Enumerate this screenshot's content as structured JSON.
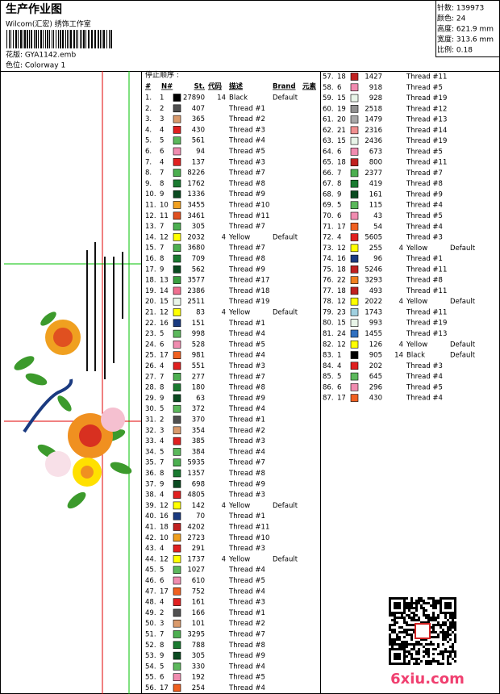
{
  "header": {
    "title": "生产作业图",
    "studio": "Wilcom(汇宏) 绣饰工作室",
    "design": "花版: GYA1142.emb",
    "colorway": "色位: Colorway 1"
  },
  "stats": [
    "针数: 139973",
    "颜色: 24",
    "高度: 621.9 mm",
    "宽度: 313.6 mm",
    "比例: 0.18"
  ],
  "table": {
    "caption": "停止顺序 :",
    "columns": [
      "#",
      "N#",
      "St.",
      "代码",
      "描述",
      "Brand",
      "元素"
    ],
    "rows": [
      {
        "no": "1.",
        "needle": 1,
        "stitches": 27890,
        "code": 14,
        "desc": "Black",
        "brand": "Default",
        "color": "#000000"
      },
      {
        "no": "2.",
        "needle": 2,
        "stitches": 407,
        "desc": "Thread #1",
        "color": "#505050"
      },
      {
        "no": "3.",
        "needle": 3,
        "stitches": 365,
        "desc": "Thread #2",
        "color": "#d99a6c"
      },
      {
        "no": "4.",
        "needle": 4,
        "stitches": 430,
        "desc": "Thread #3",
        "color": "#e02020"
      },
      {
        "no": "5.",
        "needle": 5,
        "stitches": 561,
        "desc": "Thread #4",
        "color": "#5cb85c"
      },
      {
        "no": "6.",
        "needle": 6,
        "stitches": 94,
        "desc": "Thread #5",
        "color": "#f08cb0"
      },
      {
        "no": "7.",
        "needle": 4,
        "stitches": 137,
        "desc": "Thread #3",
        "color": "#e02020"
      },
      {
        "no": "8.",
        "needle": 7,
        "stitches": 8226,
        "desc": "Thread #7",
        "color": "#4caf50"
      },
      {
        "no": "9.",
        "needle": 8,
        "stitches": 1762,
        "desc": "Thread #8",
        "color": "#1a7a30"
      },
      {
        "no": "10.",
        "needle": 9,
        "stitches": 1336,
        "desc": "Thread #9",
        "color": "#0a4a20"
      },
      {
        "no": "11.",
        "needle": 10,
        "stitches": 3455,
        "desc": "Thread #10",
        "color": "#f0a020"
      },
      {
        "no": "12.",
        "needle": 11,
        "stitches": 3461,
        "desc": "Thread #11",
        "color": "#e05020"
      },
      {
        "no": "13.",
        "needle": 7,
        "stitches": 305,
        "desc": "Thread #7",
        "color": "#4caf50"
      },
      {
        "no": "14.",
        "needle": 12,
        "stitches": 2032,
        "code": 4,
        "desc": "Yellow",
        "brand": "Default",
        "color": "#ffff00"
      },
      {
        "no": "15.",
        "needle": 7,
        "stitches": 3680,
        "desc": "Thread #7",
        "color": "#4caf50"
      },
      {
        "no": "16.",
        "needle": 8,
        "stitches": 709,
        "desc": "Thread #8",
        "color": "#1a7a30"
      },
      {
        "no": "17.",
        "needle": 9,
        "stitches": 562,
        "desc": "Thread #9",
        "color": "#0a4a20"
      },
      {
        "no": "18.",
        "needle": 13,
        "stitches": 3577,
        "desc": "Thread #17",
        "color": "#3aa040"
      },
      {
        "no": "19.",
        "needle": 14,
        "stitches": 2386,
        "desc": "Thread #18",
        "color": "#f07090"
      },
      {
        "no": "20.",
        "needle": 15,
        "stitches": 2511,
        "desc": "Thread #19",
        "color": "#e8f4e8"
      },
      {
        "no": "21.",
        "needle": 12,
        "stitches": 83,
        "code": 4,
        "desc": "Yellow",
        "brand": "Default",
        "color": "#ffff00"
      },
      {
        "no": "22.",
        "needle": 16,
        "stitches": 151,
        "desc": "Thread #1",
        "color": "#1a3a80"
      },
      {
        "no": "23.",
        "needle": 5,
        "stitches": 998,
        "desc": "Thread #4",
        "color": "#5cb85c"
      },
      {
        "no": "24.",
        "needle": 6,
        "stitches": 528,
        "desc": "Thread #5",
        "color": "#f08cb0"
      },
      {
        "no": "25.",
        "needle": 17,
        "stitches": 981,
        "desc": "Thread #4",
        "color": "#f06020"
      },
      {
        "no": "26.",
        "needle": 4,
        "stitches": 551,
        "desc": "Thread #3",
        "color": "#e02020"
      },
      {
        "no": "27.",
        "needle": 7,
        "stitches": 277,
        "desc": "Thread #7",
        "color": "#4caf50"
      },
      {
        "no": "28.",
        "needle": 8,
        "stitches": 180,
        "desc": "Thread #8",
        "color": "#1a7a30"
      },
      {
        "no": "29.",
        "needle": 9,
        "stitches": 63,
        "desc": "Thread #9",
        "color": "#0a4a20"
      },
      {
        "no": "30.",
        "needle": 5,
        "stitches": 372,
        "desc": "Thread #4",
        "color": "#5cb85c"
      },
      {
        "no": "31.",
        "needle": 2,
        "stitches": 370,
        "desc": "Thread #1",
        "color": "#505050"
      },
      {
        "no": "32.",
        "needle": 3,
        "stitches": 354,
        "desc": "Thread #2",
        "color": "#d99a6c"
      },
      {
        "no": "33.",
        "needle": 4,
        "stitches": 385,
        "desc": "Thread #3",
        "color": "#e02020"
      },
      {
        "no": "34.",
        "needle": 5,
        "stitches": 384,
        "desc": "Thread #4",
        "color": "#5cb85c"
      },
      {
        "no": "35.",
        "needle": 7,
        "stitches": 5935,
        "desc": "Thread #7",
        "color": "#4caf50"
      },
      {
        "no": "36.",
        "needle": 8,
        "stitches": 1357,
        "desc": "Thread #8",
        "color": "#1a7a30"
      },
      {
        "no": "37.",
        "needle": 9,
        "stitches": 698,
        "desc": "Thread #9",
        "color": "#0a4a20"
      },
      {
        "no": "38.",
        "needle": 4,
        "stitches": 4805,
        "desc": "Thread #3",
        "color": "#e02020"
      },
      {
        "no": "39.",
        "needle": 12,
        "stitches": 142,
        "code": 4,
        "desc": "Yellow",
        "brand": "Default",
        "color": "#ffff00"
      },
      {
        "no": "40.",
        "needle": 16,
        "stitches": 70,
        "desc": "Thread #1",
        "color": "#1a3a80"
      },
      {
        "no": "41.",
        "needle": 18,
        "stitches": 4202,
        "desc": "Thread #11",
        "color": "#c02020"
      },
      {
        "no": "42.",
        "needle": 10,
        "stitches": 2723,
        "desc": "Thread #10",
        "color": "#f0a020"
      },
      {
        "no": "43.",
        "needle": 4,
        "stitches": 291,
        "desc": "Thread #3",
        "color": "#e02020"
      },
      {
        "no": "44.",
        "needle": 12,
        "stitches": 1737,
        "code": 4,
        "desc": "Yellow",
        "brand": "Default",
        "color": "#ffff00"
      },
      {
        "no": "45.",
        "needle": 5,
        "stitches": 1027,
        "desc": "Thread #4",
        "color": "#5cb85c"
      },
      {
        "no": "46.",
        "needle": 6,
        "stitches": 610,
        "desc": "Thread #5",
        "color": "#f08cb0"
      },
      {
        "no": "47.",
        "needle": 17,
        "stitches": 752,
        "desc": "Thread #4",
        "color": "#f06020"
      },
      {
        "no": "48.",
        "needle": 4,
        "stitches": 161,
        "desc": "Thread #3",
        "color": "#e02020"
      },
      {
        "no": "49.",
        "needle": 2,
        "stitches": 166,
        "desc": "Thread #1",
        "color": "#505050"
      },
      {
        "no": "50.",
        "needle": 3,
        "stitches": 101,
        "desc": "Thread #2",
        "color": "#d99a6c"
      },
      {
        "no": "51.",
        "needle": 7,
        "stitches": 3295,
        "desc": "Thread #7",
        "color": "#4caf50"
      },
      {
        "no": "52.",
        "needle": 8,
        "stitches": 788,
        "desc": "Thread #8",
        "color": "#1a7a30"
      },
      {
        "no": "53.",
        "needle": 9,
        "stitches": 305,
        "desc": "Thread #9",
        "color": "#0a4a20"
      },
      {
        "no": "54.",
        "needle": 5,
        "stitches": 330,
        "desc": "Thread #4",
        "color": "#5cb85c"
      },
      {
        "no": "55.",
        "needle": 6,
        "stitches": 192,
        "desc": "Thread #5",
        "color": "#f08cb0"
      },
      {
        "no": "56.",
        "needle": 17,
        "stitches": 254,
        "desc": "Thread #4",
        "color": "#f06020"
      },
      {
        "no": "57.",
        "needle": 18,
        "stitches": 1427,
        "desc": "Thread #11",
        "color": "#c02020"
      },
      {
        "no": "58.",
        "needle": 6,
        "stitches": 918,
        "desc": "Thread #5",
        "color": "#f08cb0"
      },
      {
        "no": "59.",
        "needle": 15,
        "stitches": 928,
        "desc": "Thread #19",
        "color": "#e8f4e8"
      },
      {
        "no": "60.",
        "needle": 19,
        "stitches": 2518,
        "desc": "Thread #12",
        "color": "#909090"
      },
      {
        "no": "61.",
        "needle": 20,
        "stitches": 1479,
        "desc": "Thread #13",
        "color": "#a8a8a8"
      },
      {
        "no": "62.",
        "needle": 21,
        "stitches": 2316,
        "desc": "Thread #14",
        "color": "#f09090"
      },
      {
        "no": "63.",
        "needle": 15,
        "stitches": 2436,
        "desc": "Thread #19",
        "color": "#e8f4e8"
      },
      {
        "no": "64.",
        "needle": 6,
        "stitches": 673,
        "desc": "Thread #5",
        "color": "#f08cb0"
      },
      {
        "no": "65.",
        "needle": 18,
        "stitches": 800,
        "desc": "Thread #11",
        "color": "#c02020"
      },
      {
        "no": "66.",
        "needle": 7,
        "stitches": 2377,
        "desc": "Thread #7",
        "color": "#4caf50"
      },
      {
        "no": "67.",
        "needle": 8,
        "stitches": 419,
        "desc": "Thread #8",
        "color": "#1a7a30"
      },
      {
        "no": "68.",
        "needle": 9,
        "stitches": 161,
        "desc": "Thread #9",
        "color": "#0a4a20"
      },
      {
        "no": "69.",
        "needle": 5,
        "stitches": 115,
        "desc": "Thread #4",
        "color": "#5cb85c"
      },
      {
        "no": "70.",
        "needle": 6,
        "stitches": 43,
        "desc": "Thread #5",
        "color": "#f08cb0"
      },
      {
        "no": "71.",
        "needle": 17,
        "stitches": 54,
        "desc": "Thread #4",
        "color": "#f06020"
      },
      {
        "no": "72.",
        "needle": 4,
        "stitches": 5605,
        "desc": "Thread #3",
        "color": "#e02020"
      },
      {
        "no": "73.",
        "needle": 12,
        "stitches": 255,
        "code": 4,
        "desc": "Yellow",
        "brand": "Default",
        "color": "#ffff00"
      },
      {
        "no": "74.",
        "needle": 16,
        "stitches": 96,
        "desc": "Thread #1",
        "color": "#1a3a80"
      },
      {
        "no": "75.",
        "needle": 18,
        "stitches": 5246,
        "desc": "Thread #11",
        "color": "#c02020"
      },
      {
        "no": "76.",
        "needle": 22,
        "stitches": 3293,
        "desc": "Thread #8",
        "color": "#f08020"
      },
      {
        "no": "77.",
        "needle": 18,
        "stitches": 493,
        "desc": "Thread #11",
        "color": "#c02020"
      },
      {
        "no": "78.",
        "needle": 12,
        "stitches": 2022,
        "code": 4,
        "desc": "Yellow",
        "brand": "Default",
        "color": "#ffff00"
      },
      {
        "no": "79.",
        "needle": 23,
        "stitches": 1743,
        "desc": "Thread #11",
        "color": "#a0d0e0"
      },
      {
        "no": "80.",
        "needle": 15,
        "stitches": 993,
        "desc": "Thread #19",
        "color": "#e8f4e8"
      },
      {
        "no": "81.",
        "needle": 24,
        "stitches": 1455,
        "desc": "Thread #13",
        "color": "#3070c0"
      },
      {
        "no": "82.",
        "needle": 12,
        "stitches": 126,
        "code": 4,
        "desc": "Yellow",
        "brand": "Default",
        "color": "#ffff00"
      },
      {
        "no": "83.",
        "needle": 1,
        "stitches": 905,
        "code": 14,
        "desc": "Black",
        "brand": "Default",
        "color": "#000000"
      },
      {
        "no": "84.",
        "needle": 4,
        "stitches": 202,
        "desc": "Thread #3",
        "color": "#e02020"
      },
      {
        "no": "85.",
        "needle": 5,
        "stitches": 645,
        "desc": "Thread #4",
        "color": "#5cb85c"
      },
      {
        "no": "86.",
        "needle": 6,
        "stitches": 296,
        "desc": "Thread #5",
        "color": "#f08cb0"
      },
      {
        "no": "87.",
        "needle": 17,
        "stitches": 430,
        "desc": "Thread #4",
        "color": "#f06020"
      }
    ]
  },
  "watermark": "6xiu.com"
}
